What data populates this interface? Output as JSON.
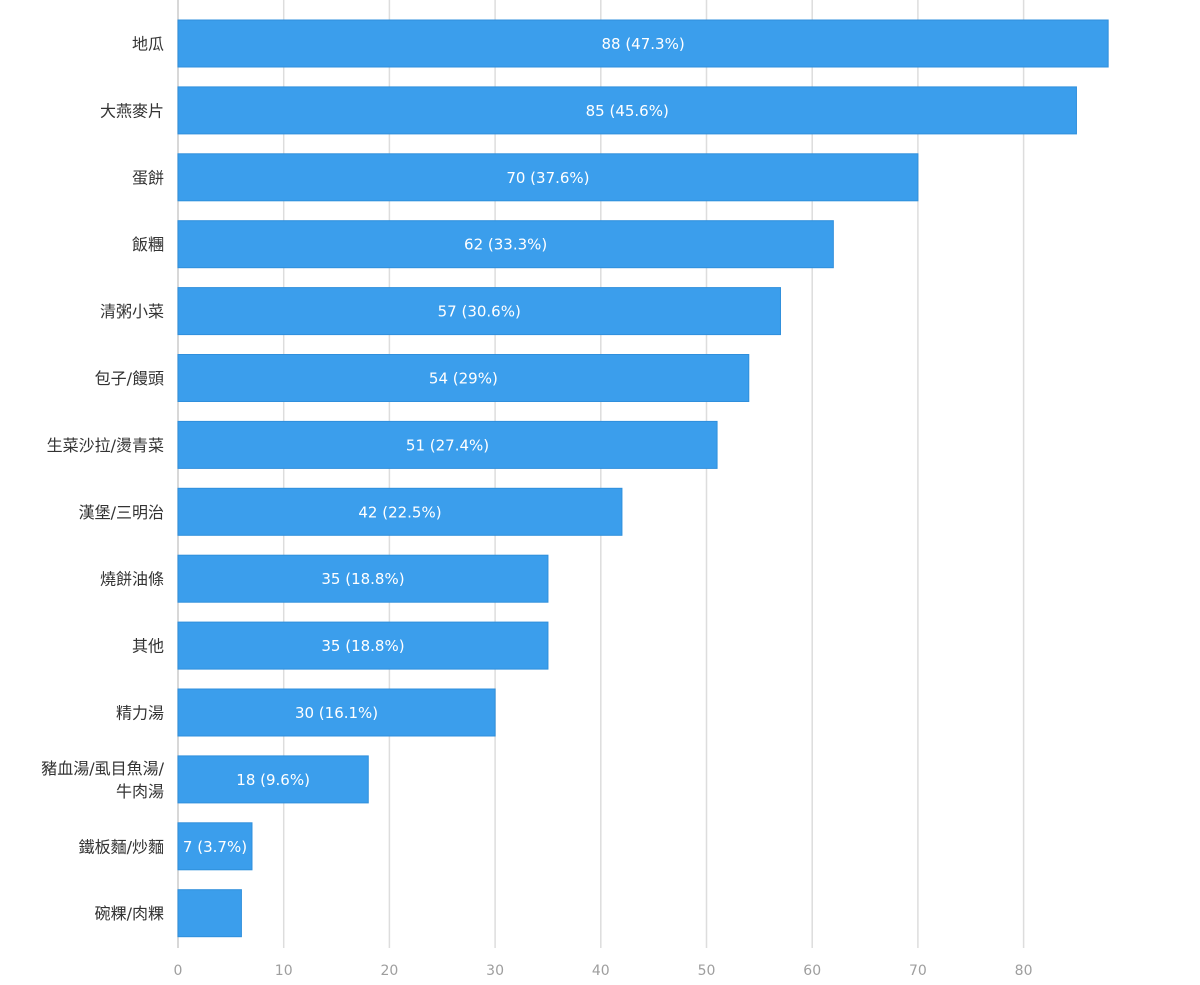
{
  "chart_data": {
    "type": "bar",
    "orientation": "horizontal",
    "title": "",
    "xlabel": "",
    "ylabel": "",
    "xlim": [
      0,
      90
    ],
    "xticks": [
      0,
      10,
      20,
      30,
      40,
      50,
      60,
      70,
      80
    ],
    "grid": true,
    "bar_color": "#3b9eec",
    "categories": [
      [
        "地瓜"
      ],
      [
        "大燕麥片"
      ],
      [
        "蛋餅"
      ],
      [
        "飯糰"
      ],
      [
        "清粥小菜"
      ],
      [
        "包子/饅頭"
      ],
      [
        "生菜沙拉/燙青菜"
      ],
      [
        "漢堡/三明治"
      ],
      [
        "燒餅油條"
      ],
      [
        "其他"
      ],
      [
        "精力湯"
      ],
      [
        "豬血湯/虱目魚湯/",
        "牛肉湯"
      ],
      [
        "鐵板麵/炒麵"
      ],
      [
        "碗粿/肉粿"
      ]
    ],
    "values": [
      88,
      85,
      70,
      62,
      57,
      54,
      51,
      42,
      35,
      35,
      30,
      18,
      7,
      6
    ],
    "data_labels": [
      "88 (47.3%)",
      "85 (45.6%)",
      "70 (37.6%)",
      "62 (33.3%)",
      "57 (30.6%)",
      "54 (29%)",
      "51 (27.4%)",
      "42 (22.5%)",
      "35 (18.8%)",
      "35 (18.8%)",
      "30 (16.1%)",
      "18 (9.6%)",
      "7 (3.7%)",
      ""
    ]
  }
}
